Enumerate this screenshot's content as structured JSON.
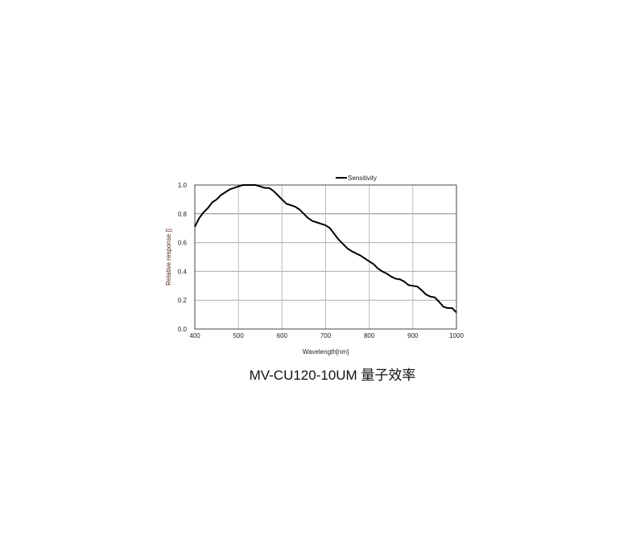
{
  "chart_data": {
    "type": "line",
    "title": "",
    "xlabel": "Wavelength[nm]",
    "ylabel": "Relative response []",
    "xlim": [
      400,
      1000
    ],
    "ylim": [
      0,
      1.0
    ],
    "xticks": [
      "400",
      "500",
      "600",
      "700",
      "800",
      "900",
      "1000"
    ],
    "yticks": [
      "0.0",
      "0.2",
      "0.4",
      "0.6",
      "0.8",
      "1.0"
    ],
    "grid": true,
    "legend_position": "top",
    "series": [
      {
        "name": "Sensitivity",
        "color": "#000000",
        "x": [
          400,
          410,
          420,
          430,
          440,
          450,
          460,
          470,
          480,
          490,
          500,
          510,
          520,
          530,
          540,
          550,
          560,
          570,
          580,
          590,
          600,
          610,
          620,
          630,
          640,
          650,
          660,
          670,
          680,
          690,
          700,
          710,
          720,
          730,
          740,
          750,
          760,
          770,
          780,
          790,
          800,
          810,
          820,
          830,
          840,
          850,
          860,
          870,
          880,
          890,
          900,
          910,
          920,
          930,
          940,
          950,
          960,
          970,
          980,
          990,
          1000
        ],
        "y": [
          0.71,
          0.77,
          0.81,
          0.84,
          0.88,
          0.9,
          0.93,
          0.95,
          0.97,
          0.98,
          0.99,
          1.0,
          1.0,
          1.0,
          1.0,
          0.99,
          0.98,
          0.98,
          0.96,
          0.93,
          0.9,
          0.87,
          0.86,
          0.85,
          0.83,
          0.8,
          0.77,
          0.75,
          0.74,
          0.73,
          0.72,
          0.7,
          0.66,
          0.62,
          0.59,
          0.56,
          0.54,
          0.525,
          0.51,
          0.49,
          0.47,
          0.45,
          0.42,
          0.4,
          0.385,
          0.365,
          0.35,
          0.345,
          0.33,
          0.305,
          0.3,
          0.295,
          0.27,
          0.24,
          0.225,
          0.22,
          0.19,
          0.155,
          0.145,
          0.145,
          0.115
        ]
      }
    ]
  },
  "caption": "MV-CU120-10UM 量子效率"
}
